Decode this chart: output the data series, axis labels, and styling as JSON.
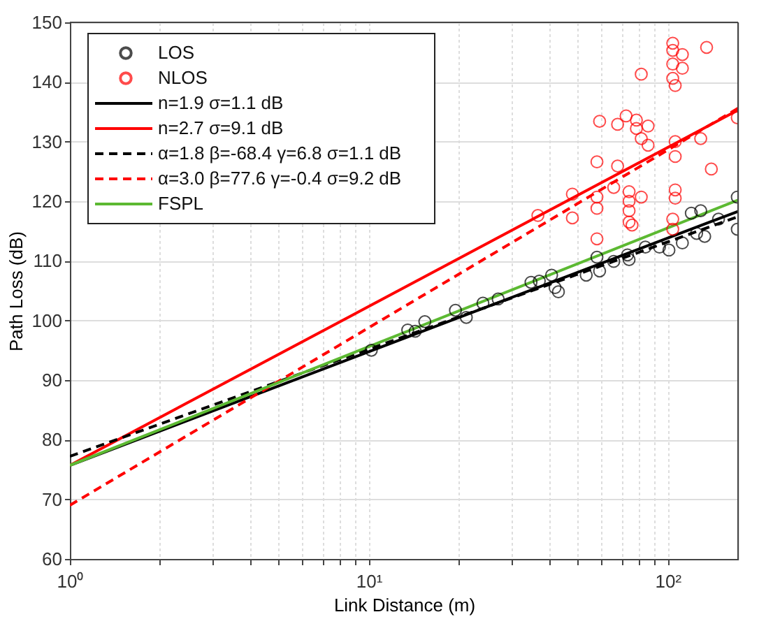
{
  "chart_data": {
    "type": "scatter",
    "xlabel": "Link Distance (m)",
    "ylabel": "Path Loss (dB)",
    "log": "x",
    "xlim": [
      1,
      172
    ],
    "ylim": [
      60,
      150
    ],
    "xticks": [
      {
        "value": 1,
        "label": "10⁰"
      },
      {
        "value": 2,
        "label": null
      },
      {
        "value": 3,
        "label": null
      },
      {
        "value": 4,
        "label": null
      },
      {
        "value": 5,
        "label": null
      },
      {
        "value": 6,
        "label": null
      },
      {
        "value": 7,
        "label": null
      },
      {
        "value": 8,
        "label": null
      },
      {
        "value": 9,
        "label": null
      },
      {
        "value": 10,
        "label": "10¹"
      },
      {
        "value": 20,
        "label": null
      },
      {
        "value": 30,
        "label": null
      },
      {
        "value": 40,
        "label": null
      },
      {
        "value": 50,
        "label": null
      },
      {
        "value": 60,
        "label": null
      },
      {
        "value": 70,
        "label": null
      },
      {
        "value": 80,
        "label": null
      },
      {
        "value": 90,
        "label": null
      },
      {
        "value": 100,
        "label": "10²"
      }
    ],
    "yticks": [
      60,
      70,
      80,
      90,
      100,
      110,
      120,
      130,
      140,
      150
    ],
    "grid": true,
    "legend": "top left",
    "series": [
      {
        "name": "LOS",
        "marker": "circle",
        "color": "#000000",
        "x": [
          10.2,
          13.5,
          14.3,
          15.4,
          19.5,
          21.2,
          24.1,
          27.1,
          34.9,
          37.2,
          40.9,
          43.1,
          42,
          53.4,
          58,
          59.2,
          66,
          73.4,
          74.3,
          84.2,
          93.9,
          101,
          112,
          125,
          133,
          148,
          171,
          120,
          129,
          171
        ],
        "values": [
          95,
          98.4,
          98.2,
          99.8,
          101.7,
          100.5,
          102.9,
          103.6,
          106.4,
          106.6,
          107.6,
          104.8,
          105.5,
          107.6,
          110.6,
          108.3,
          109.9,
          111,
          110.2,
          112.3,
          112.3,
          111.8,
          113,
          114.6,
          114.1,
          117,
          115.3,
          118,
          118.4,
          120.7
        ]
      },
      {
        "name": "NLOS",
        "marker": "circle",
        "color": "#ff0000",
        "x": [
          36.8,
          48,
          48,
          58,
          59.2,
          58,
          58,
          58,
          66,
          68,
          68,
          72.6,
          74.3,
          74.3,
          74.3,
          74.3,
          78.6,
          78.6,
          81.6,
          86,
          86,
          81.6,
          81.6,
          104,
          104,
          112,
          104,
          112,
          104,
          106,
          106,
          106,
          106,
          106,
          104,
          135,
          129,
          140,
          171,
          104,
          76
        ],
        "values": [
          117.6,
          121.2,
          117.2,
          126.6,
          133.4,
          120.7,
          118.8,
          113.7,
          122.3,
          132.9,
          125.9,
          134.3,
          120,
          118.4,
          116.5,
          121.6,
          132.2,
          133.6,
          130.5,
          132.6,
          129.4,
          120.7,
          141.3,
          146.5,
          145.3,
          144.6,
          143,
          142.3,
          140.6,
          139.4,
          127.5,
          130,
          121.9,
          120.5,
          117,
          145.8,
          130.5,
          125.4,
          134,
          115.3,
          116
        ]
      },
      {
        "name": "n=1.9 σ=1.1 dB",
        "type": "line",
        "line_style": "solid",
        "color": "#000000",
        "x": [
          1,
          172
        ],
        "values": [
          75.7,
          118.3
        ]
      },
      {
        "name": "n=2.7 σ=9.1 dB",
        "type": "line",
        "line_style": "solid",
        "color": "#ff0000",
        "x": [
          1,
          172
        ],
        "values": [
          75.7,
          135.3
        ]
      },
      {
        "name": "α=1.8 β=-68.4 γ=6.8 σ=1.1 dB",
        "type": "line",
        "line_style": "dashed",
        "color": "#000000",
        "x": [
          1,
          172
        ],
        "values": [
          77.2,
          117.4
        ]
      },
      {
        "name": "α=3.0 β=77.6 γ=-0.4 σ=9.2 dB",
        "type": "line",
        "line_style": "dashed",
        "color": "#ff0000",
        "x": [
          1,
          172
        ],
        "values": [
          69.0,
          135.6
        ]
      },
      {
        "name": "FSPL",
        "type": "line",
        "line_style": "solid",
        "color": "#5cb932",
        "x": [
          1,
          172
        ],
        "values": [
          75.7,
          120.2
        ]
      }
    ]
  }
}
